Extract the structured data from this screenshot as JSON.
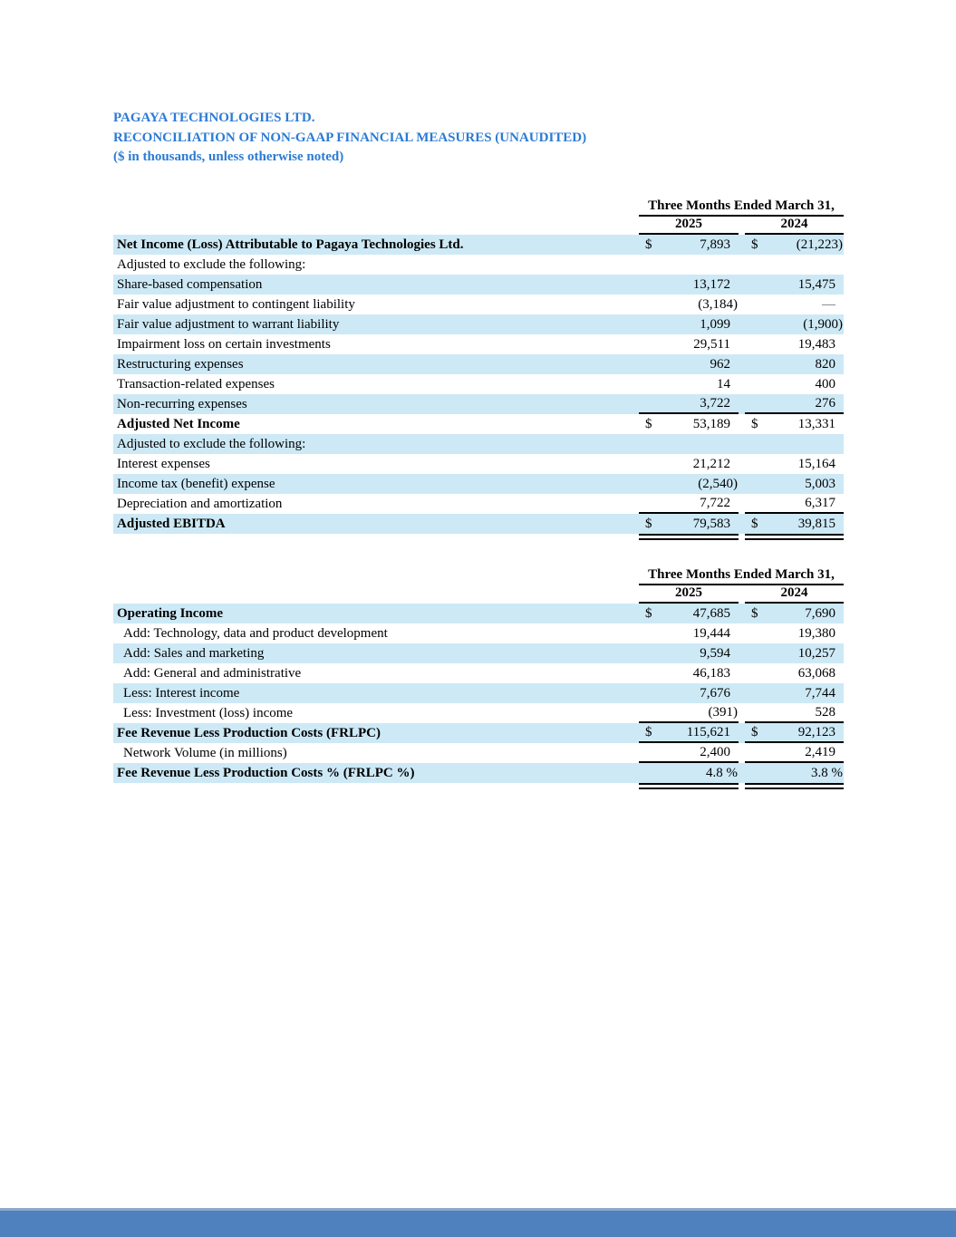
{
  "document": {
    "company": "PAGAYA TECHNOLOGIES LTD.",
    "title": "RECONCILIATION OF NON-GAAP FINANCIAL MEASURES (UNAUDITED)",
    "note": "($ in thousands, unless otherwise noted)"
  },
  "colors": {
    "heading_blue": "#2b7bd4",
    "row_band_blue": "#cde9f6",
    "footer_bar_blue": "#4e81bd",
    "footer_bar_top_edge": "#8ea9cb",
    "rule_black": "#000000"
  },
  "tables": [
    {
      "id": "adjusted-ebitda-reconciliation",
      "period_header": "Three Months Ended March 31,",
      "years": [
        "2025",
        "2024"
      ],
      "rows": [
        {
          "label": "Net Income (Loss) Attributable to Pagaya Technologies Ltd.",
          "values": [
            "7,893",
            "(21,223)"
          ],
          "dollar": true,
          "bold": true,
          "shaded": true
        },
        {
          "label": "Adjusted to exclude the following:",
          "values": [
            "",
            ""
          ]
        },
        {
          "label": "Share-based compensation",
          "values": [
            "13,172",
            "15,475"
          ],
          "shaded": true
        },
        {
          "label": "Fair value adjustment to contingent liability",
          "values": [
            "(3,184)",
            "—"
          ]
        },
        {
          "label": "Fair value adjustment to warrant liability",
          "values": [
            "1,099",
            "(1,900)"
          ],
          "shaded": true
        },
        {
          "label": "Impairment loss on certain investments",
          "values": [
            "29,511",
            "19,483"
          ]
        },
        {
          "label": "Restructuring expenses",
          "values": [
            "962",
            "820"
          ],
          "shaded": true
        },
        {
          "label": "Transaction-related expenses",
          "values": [
            "14",
            "400"
          ]
        },
        {
          "label": "Non-recurring expenses",
          "values": [
            "3,722",
            "276"
          ],
          "shaded": true,
          "rule_below": true
        },
        {
          "label": "Adjusted Net Income",
          "values": [
            "53,189",
            "13,331"
          ],
          "dollar": true,
          "bold": true
        },
        {
          "label": "Adjusted to exclude the following:",
          "values": [
            "",
            ""
          ],
          "shaded": true
        },
        {
          "label": "Interest expenses",
          "values": [
            "21,212",
            "15,164"
          ]
        },
        {
          "label": "Income tax (benefit) expense",
          "values": [
            "(2,540)",
            "5,003"
          ],
          "shaded": true
        },
        {
          "label": "Depreciation and amortization",
          "values": [
            "7,722",
            "6,317"
          ],
          "rule_below": true
        },
        {
          "label": "Adjusted EBITDA",
          "values": [
            "79,583",
            "39,815"
          ],
          "dollar": true,
          "bold": true,
          "shaded": true,
          "double_rule_after": true
        }
      ]
    },
    {
      "id": "frlpc-reconciliation",
      "period_header": "Three Months Ended March 31,",
      "years": [
        "2025",
        "2024"
      ],
      "rows": [
        {
          "label": "Operating Income",
          "values": [
            "47,685",
            "7,690"
          ],
          "dollar": true,
          "bold": true,
          "shaded": true
        },
        {
          "label": "Add: Technology, data and product development",
          "values": [
            "19,444",
            "19,380"
          ],
          "indent": true
        },
        {
          "label": "Add: Sales and marketing",
          "values": [
            "9,594",
            "10,257"
          ],
          "indent": true,
          "shaded": true
        },
        {
          "label": "Add: General and administrative",
          "values": [
            "46,183",
            "63,068"
          ],
          "indent": true
        },
        {
          "label": "Less: Interest income",
          "values": [
            "7,676",
            "7,744"
          ],
          "indent": true,
          "shaded": true
        },
        {
          "label": "Less: Investment (loss) income",
          "values": [
            "(391)",
            "528"
          ],
          "indent": true,
          "rule_below": true
        },
        {
          "label": "Fee Revenue Less Production Costs (FRLPC)",
          "values": [
            "115,621",
            "92,123"
          ],
          "dollar": true,
          "bold": true,
          "shaded": true,
          "rule_below": true
        },
        {
          "label": "Network Volume (in millions)",
          "values": [
            "2,400",
            "2,419"
          ],
          "indent": true,
          "rule_below": true
        },
        {
          "label": "Fee Revenue Less Production Costs % (FRLPC %)",
          "values": [
            "4.8 %",
            "3.8 %"
          ],
          "bold": true,
          "shaded": true,
          "double_rule_after": true
        }
      ]
    }
  ]
}
